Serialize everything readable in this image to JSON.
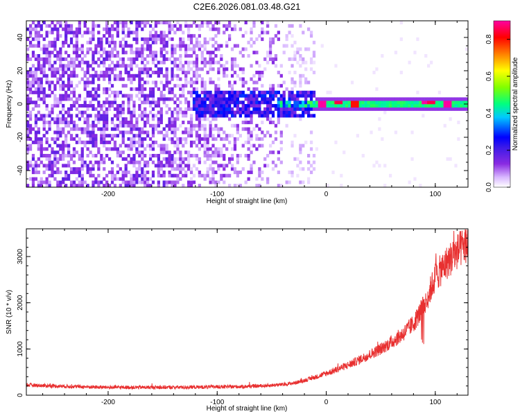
{
  "title": "C2E6.2026.081.03.48.G21",
  "chart_data": [
    {
      "type": "heatmap",
      "xlabel": "Height of straight line (km)",
      "ylabel": "Frequency (Hz)",
      "xlim": [
        -275,
        130
      ],
      "ylim": [
        -50,
        50
      ],
      "xticks": [
        -200,
        -100,
        0,
        100
      ],
      "xtick_labels": [
        "-200",
        "-100",
        "0",
        "100"
      ],
      "yticks": [
        -40,
        -20,
        0,
        20,
        40
      ],
      "ytick_labels": [
        "-40",
        "-20",
        "0",
        "20",
        "40"
      ],
      "colorbar": {
        "label": "Normalized spectral amplitude",
        "range": [
          0,
          0.9
        ],
        "ticks": [
          0,
          0.2,
          0.4,
          0.6,
          0.8
        ],
        "tick_labels": [
          "0.0",
          "0.2",
          "0.4",
          "0.6",
          "0.8"
        ]
      },
      "description_regions": [
        {
          "x_range": [
            -275,
            -140
          ],
          "freq_range": [
            -50,
            50
          ],
          "amplitude": 0.12
        },
        {
          "x_range": [
            -140,
            -40
          ],
          "freq_range": [
            -50,
            50
          ],
          "amplitude": 0.08
        },
        {
          "x_range": [
            -125,
            -10
          ],
          "freq_range": [
            -8,
            8
          ],
          "amplitude": 0.2
        },
        {
          "x_range": [
            -50,
            -10
          ],
          "freq_range": [
            -3,
            3
          ],
          "amplitude": 0.35
        },
        {
          "x_range": [
            -10,
            130
          ],
          "freq_range": [
            -2,
            2
          ],
          "amplitude": 0.45
        }
      ],
      "hotspots": [
        {
          "x": -5,
          "freq": 0,
          "amplitude": 0.9
        },
        {
          "x": 10,
          "freq": 1,
          "amplitude": 0.85
        },
        {
          "x": 25,
          "freq": 0,
          "amplitude": 0.8
        },
        {
          "x": 90,
          "freq": 1,
          "amplitude": 0.9
        },
        {
          "x": 95,
          "freq": 1,
          "amplitude": 0.85
        },
        {
          "x": 110,
          "freq": -0.5,
          "amplitude": 0.9
        }
      ]
    },
    {
      "type": "line",
      "xlabel": "Height of straight line (km)",
      "ylabel": "SNR (10 * v/v)",
      "xlim": [
        -275,
        130
      ],
      "ylim": [
        0,
        3600
      ],
      "xticks": [
        -200,
        -100,
        0,
        100
      ],
      "xtick_labels": [
        "-200",
        "-100",
        "0",
        "100"
      ],
      "yticks": [
        0,
        1000,
        2000,
        3000
      ],
      "ytick_labels": [
        "0",
        "1000",
        "2000",
        "3000"
      ],
      "series": [
        {
          "name": "SNR",
          "color": "#e83030",
          "x": [
            -275,
            -250,
            -220,
            -200,
            -180,
            -150,
            -120,
            -100,
            -80,
            -60,
            -40,
            -30,
            -20,
            -10,
            0,
            10,
            20,
            30,
            40,
            50,
            60,
            70,
            80,
            85,
            90,
            95,
            100,
            110,
            120,
            130
          ],
          "y": [
            220,
            200,
            180,
            170,
            170,
            170,
            175,
            180,
            185,
            200,
            230,
            260,
            320,
            390,
            470,
            560,
            650,
            760,
            880,
            1000,
            1150,
            1320,
            1550,
            1750,
            1950,
            2250,
            2550,
            2850,
            3100,
            3300
          ]
        }
      ]
    }
  ]
}
